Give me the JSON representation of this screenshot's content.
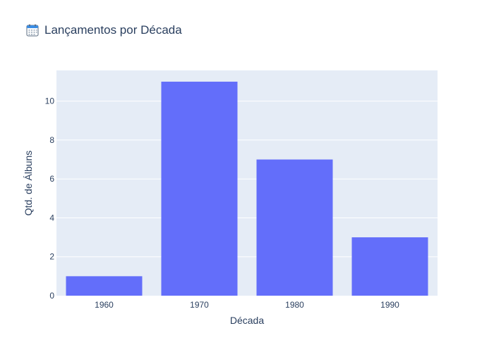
{
  "chart_data": {
    "type": "bar",
    "title": "Lançamentos por Década",
    "title_icon": "calendar-icon",
    "xlabel": "Década",
    "ylabel": "Qtd. de Álbuns",
    "categories": [
      "1960",
      "1970",
      "1980",
      "1990"
    ],
    "values": [
      1,
      11,
      7,
      3
    ],
    "ylim": [
      0,
      11.58
    ],
    "yticks": [
      0,
      2,
      4,
      6,
      8,
      10
    ],
    "grid": true,
    "colors": {
      "bar": "#636efa",
      "plot_bg": "#e5ecf6",
      "grid": "#ffffff",
      "text": "#2a3f5f"
    }
  }
}
